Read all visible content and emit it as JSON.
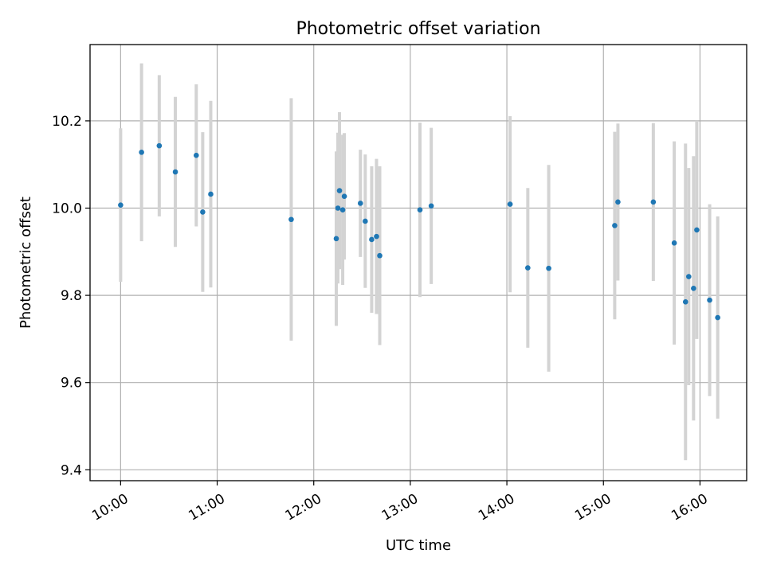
{
  "chart_data": {
    "type": "scatter",
    "title": "Photometric offset variation",
    "xlabel": "UTC time",
    "ylabel": "Photometric offset",
    "xlim": [
      "09:41",
      "16:29"
    ],
    "ylim": [
      9.375,
      10.375
    ],
    "x_ticks": [
      "10:00",
      "11:00",
      "12:00",
      "13:00",
      "14:00",
      "15:00",
      "16:00"
    ],
    "y_ticks": [
      "9.4",
      "9.6",
      "9.8",
      "10.0",
      "10.2"
    ],
    "grid": true,
    "colors": {
      "point": "#1f77b4",
      "errorbar": "#d3d3d3"
    },
    "points": [
      {
        "x": "10:00",
        "y": 10.007,
        "err": 0.176
      },
      {
        "x": "10:13",
        "y": 10.128,
        "err": 0.204
      },
      {
        "x": "10:24",
        "y": 10.143,
        "err": 0.162
      },
      {
        "x": "10:34",
        "y": 10.083,
        "err": 0.172
      },
      {
        "x": "10:47",
        "y": 10.121,
        "err": 0.163
      },
      {
        "x": "10:51",
        "y": 9.991,
        "err": 0.183
      },
      {
        "x": "10:56",
        "y": 10.032,
        "err": 0.214
      },
      {
        "x": "11:46",
        "y": 9.974,
        "err": 0.278
      },
      {
        "x": "12:14",
        "y": 9.93,
        "err": 0.2
      },
      {
        "x": "12:15",
        "y": 10.0,
        "err": 0.173
      },
      {
        "x": "12:16",
        "y": 10.04,
        "err": 0.18
      },
      {
        "x": "12:18",
        "y": 9.996,
        "err": 0.172
      },
      {
        "x": "12:19",
        "y": 10.027,
        "err": 0.145
      },
      {
        "x": "12:29",
        "y": 10.011,
        "err": 0.123
      },
      {
        "x": "12:32",
        "y": 9.97,
        "err": 0.153
      },
      {
        "x": "12:36",
        "y": 9.928,
        "err": 0.168
      },
      {
        "x": "12:39",
        "y": 9.935,
        "err": 0.178
      },
      {
        "x": "12:41",
        "y": 9.891,
        "err": 0.205
      },
      {
        "x": "13:06",
        "y": 9.996,
        "err": 0.2
      },
      {
        "x": "13:13",
        "y": 10.005,
        "err": 0.179
      },
      {
        "x": "14:02",
        "y": 10.009,
        "err": 0.202
      },
      {
        "x": "14:13",
        "y": 9.863,
        "err": 0.183
      },
      {
        "x": "14:26",
        "y": 9.862,
        "err": 0.237
      },
      {
        "x": "15:07",
        "y": 9.96,
        "err": 0.215
      },
      {
        "x": "15:09",
        "y": 10.014,
        "err": 0.18
      },
      {
        "x": "15:31",
        "y": 10.014,
        "err": 0.181
      },
      {
        "x": "15:44",
        "y": 9.92,
        "err": 0.233
      },
      {
        "x": "15:51",
        "y": 9.785,
        "err": 0.363
      },
      {
        "x": "15:53",
        "y": 9.843,
        "err": 0.249
      },
      {
        "x": "15:56",
        "y": 9.816,
        "err": 0.303
      },
      {
        "x": "15:58",
        "y": 9.95,
        "err": 0.25
      },
      {
        "x": "16:06",
        "y": 9.789,
        "err": 0.22
      },
      {
        "x": "16:11",
        "y": 9.749,
        "err": 0.232
      }
    ]
  }
}
